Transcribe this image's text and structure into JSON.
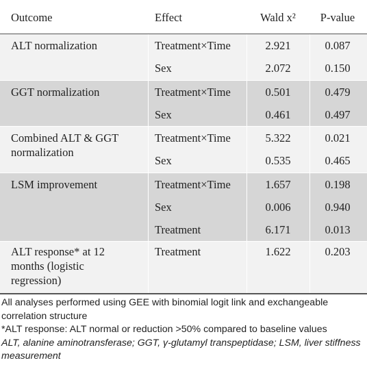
{
  "header": {
    "outcome": "Outcome",
    "effect": "Effect",
    "wald": "Wald x²",
    "pvalue": "P-value"
  },
  "groups": [
    {
      "outcome": "ALT normalization",
      "rows": [
        {
          "effect": "Treatment×Time",
          "wald": "2.921",
          "p": "0.087"
        },
        {
          "effect": "Sex",
          "wald": "2.072",
          "p": "0.150"
        }
      ]
    },
    {
      "outcome": "GGT normalization",
      "rows": [
        {
          "effect": "Treatment×Time",
          "wald": "0.501",
          "p": "0.479"
        },
        {
          "effect": "Sex",
          "wald": "0.461",
          "p": "0.497"
        }
      ]
    },
    {
      "outcome": "Combined ALT & GGT normalization",
      "rows": [
        {
          "effect": "Treatment×Time",
          "wald": "5.322",
          "p": "0.021"
        },
        {
          "effect": "Sex",
          "wald": "0.535",
          "p": "0.465"
        }
      ]
    },
    {
      "outcome": "LSM improvement",
      "rows": [
        {
          "effect": "Treatment×Time",
          "wald": "1.657",
          "p": "0.198"
        },
        {
          "effect": "Sex",
          "wald": "0.006",
          "p": "0.940"
        },
        {
          "effect": "Treatment",
          "wald": "6.171",
          "p": "0.013"
        }
      ]
    },
    {
      "outcome": "ALT response* at 12 months (logistic regression)",
      "rows": [
        {
          "effect": "Treatment",
          "wald": "1.622",
          "p": "0.203"
        }
      ]
    }
  ],
  "footnotes": {
    "note1": "All analyses performed using GEE with binomial logit link and exchangeable correlation structure",
    "note2": "*ALT response: ALT normal or reduction >50% compared to baseline values",
    "abbrev": "ALT, alanine aminotransferase; GGT, γ-glutamyl transpeptidase; LSM, liver stiffness measurement"
  }
}
